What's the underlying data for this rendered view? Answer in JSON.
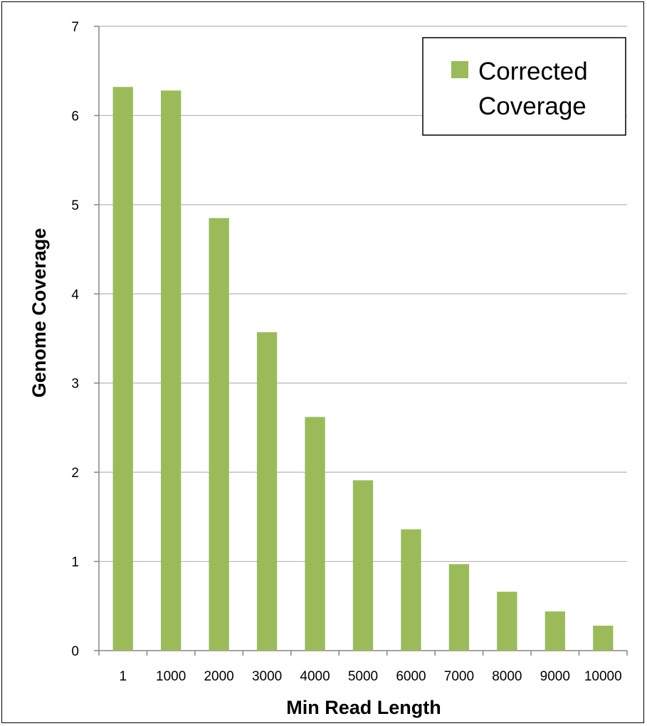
{
  "chart_data": {
    "type": "bar",
    "categories": [
      "1",
      "1000",
      "2000",
      "3000",
      "4000",
      "5000",
      "6000",
      "7000",
      "8000",
      "9000",
      "10000"
    ],
    "series": [
      {
        "name": "Corrected Coverage",
        "values": [
          6.32,
          6.28,
          4.85,
          3.57,
          2.62,
          1.91,
          1.36,
          0.97,
          0.66,
          0.44,
          0.28
        ]
      }
    ],
    "xlabel": "Min Read Length",
    "ylabel": "Genome Coverage",
    "ylim": [
      0,
      7
    ],
    "yticks": [
      "0",
      "1",
      "2",
      "3",
      "4",
      "5",
      "6",
      "7"
    ],
    "grid": true,
    "legend_position": "top-right",
    "legend_lines": [
      "Corrected",
      "Coverage"
    ],
    "bar_color": "#9BBB59"
  }
}
